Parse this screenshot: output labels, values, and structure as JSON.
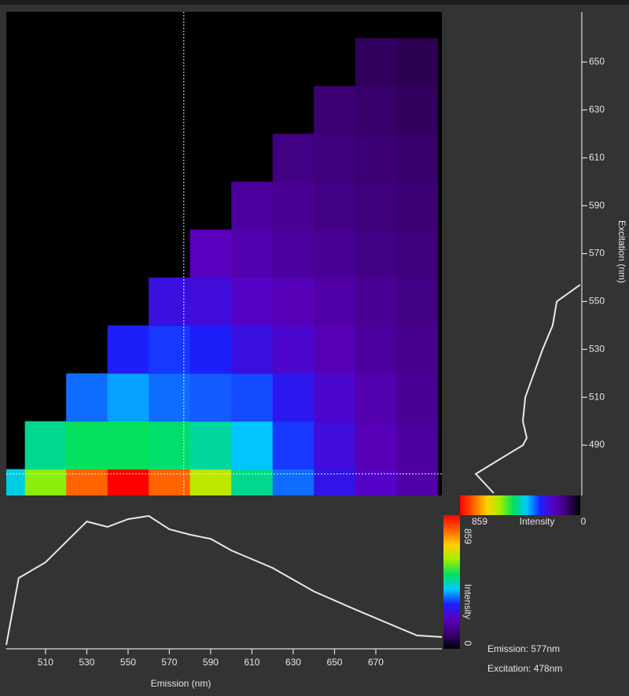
{
  "chart_data": [
    {
      "type": "heatmap",
      "x": [
        490,
        510,
        530,
        550,
        570,
        590,
        610,
        630,
        650,
        670,
        690
      ],
      "y": [
        470,
        490,
        510,
        530,
        550,
        570,
        590,
        610,
        630,
        650
      ],
      "values": [
        [
          400,
          560,
          760,
          859,
          760,
          600,
          450,
          330,
          250,
          200,
          160
        ],
        [
          null,
          450,
          480,
          480,
          470,
          440,
          380,
          300,
          230,
          180,
          150
        ],
        [
          null,
          null,
          330,
          360,
          330,
          320,
          310,
          260,
          210,
          170,
          140
        ],
        [
          null,
          null,
          null,
          280,
          300,
          280,
          240,
          210,
          180,
          150,
          130
        ],
        [
          null,
          null,
          null,
          null,
          240,
          230,
          200,
          180,
          160,
          140,
          120
        ],
        [
          null,
          null,
          null,
          null,
          null,
          190,
          170,
          150,
          140,
          120,
          110
        ],
        [
          null,
          null,
          null,
          null,
          null,
          null,
          150,
          140,
          120,
          110,
          100
        ],
        [
          null,
          null,
          null,
          null,
          null,
          null,
          null,
          120,
          110,
          100,
          90
        ],
        [
          null,
          null,
          null,
          null,
          null,
          null,
          null,
          null,
          100,
          90,
          80
        ],
        [
          null,
          null,
          null,
          null,
          null,
          null,
          null,
          null,
          null,
          80,
          70
        ]
      ],
      "xlim": [
        491,
        702
      ],
      "ylim": [
        469,
        671
      ],
      "xticks": [
        510,
        530,
        550,
        570,
        590,
        610,
        630,
        650,
        670
      ],
      "yticks": [
        490,
        510,
        530,
        550,
        570,
        590,
        610,
        630,
        650
      ],
      "xlabel": "Emission (nm)",
      "ylabel": "Excitation (nm)",
      "colormap": [
        "#000000",
        "#3a0070",
        "#5a00c0",
        "#1a20ff",
        "#00c8ff",
        "#00e060",
        "#a0f000",
        "#ffd000",
        "#ff6000",
        "#ff0000"
      ],
      "zlim": [
        0,
        859
      ],
      "colorbar_label": "Intensity",
      "cursor": {
        "emission": {
          "value": 577,
          "label": "Emission: 577nm"
        },
        "excitation": {
          "value": 478,
          "label": "Excitation: 478nm"
        }
      },
      "cursor_color": "#f0f0f0"
    },
    {
      "type": "line",
      "orientation": "horizontal",
      "color": "#e8e8e8",
      "x": [
        491,
        497,
        510,
        530,
        540,
        550,
        560,
        570,
        580,
        590,
        600,
        620,
        640,
        660,
        680,
        690,
        702
      ],
      "values": [
        25,
        455,
        556,
        818,
        783,
        833,
        854,
        768,
        733,
        707,
        632,
        520,
        369,
        253,
        141,
        86,
        76
      ]
    },
    {
      "type": "line",
      "orientation": "vertical",
      "color": "#e8e8e8",
      "x": [
        470,
        478,
        485,
        490,
        493,
        500,
        510,
        530,
        540,
        550,
        557
      ],
      "values": [
        318,
        208,
        376,
        497,
        521,
        497,
        512,
        618,
        680,
        705,
        849
      ]
    }
  ]
}
